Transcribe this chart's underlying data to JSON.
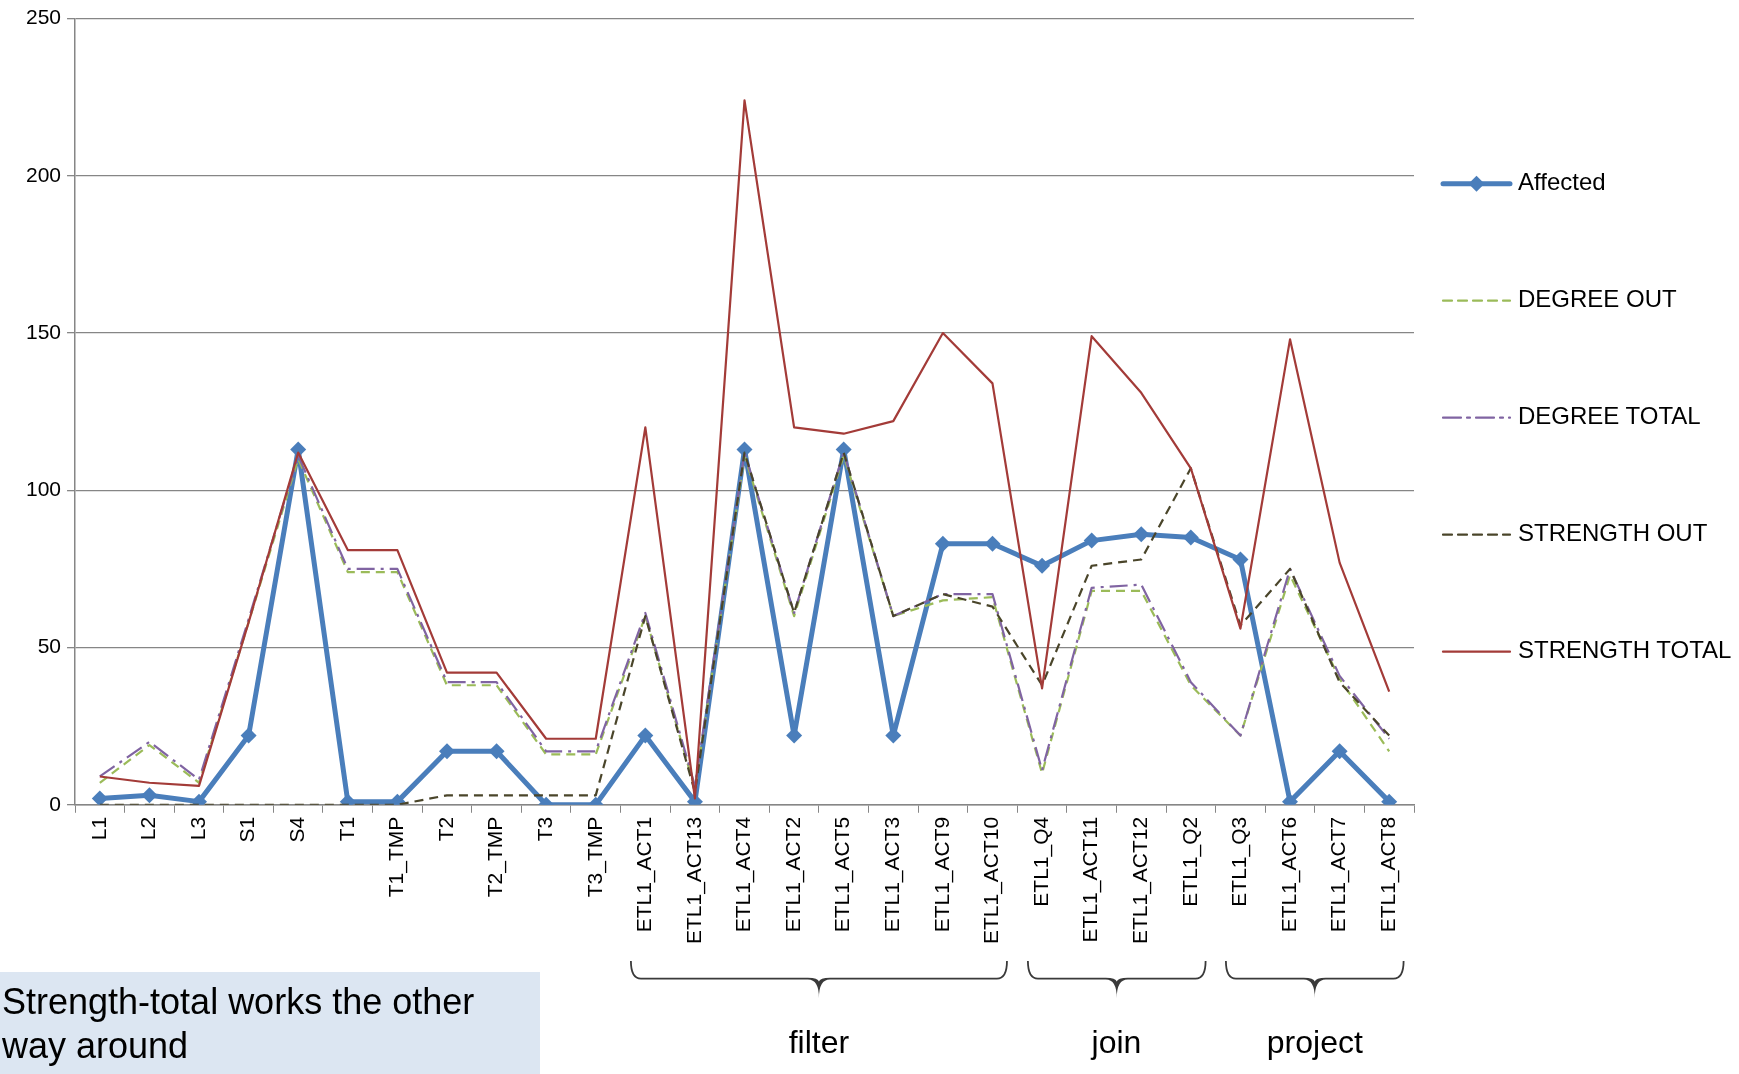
{
  "chart_data": {
    "type": "line",
    "categories": [
      "L1",
      "L2",
      "L3",
      "S1",
      "S4",
      "T1",
      "T1_TMP",
      "T2",
      "T2_TMP",
      "T3",
      "T3_TMP",
      "ETL1_ACT1",
      "ETL1_ACT13",
      "ETL1_ACT4",
      "ETL1_ACT2",
      "ETL1_ACT5",
      "ETL1_ACT3",
      "ETL1_ACT9",
      "ETL1_ACT10",
      "ETL1_Q4",
      "ETL1_ACT11",
      "ETL1_ACT12",
      "ETL1_Q2",
      "ETL1_Q3",
      "ETL1_ACT6",
      "ETL1_ACT7",
      "ETL1_ACT8"
    ],
    "series": [
      {
        "name": "Affected",
        "color": "#4a7ebb",
        "line_style": "solid",
        "marker": "diamond",
        "values": [
          2,
          3,
          1,
          22,
          113,
          1,
          1,
          17,
          17,
          0,
          0,
          22,
          1,
          113,
          22,
          113,
          22,
          83,
          83,
          76,
          84,
          86,
          85,
          78,
          1,
          17,
          1
        ]
      },
      {
        "name": "DEGREE OUT",
        "color": "#9bbb59",
        "line_style": "dashed",
        "marker": "none",
        "values": [
          7,
          19,
          7,
          58,
          110,
          74,
          74,
          38,
          38,
          16,
          16,
          60,
          5,
          111,
          60,
          111,
          60,
          65,
          66,
          10,
          68,
          68,
          38,
          22,
          73,
          40,
          17
        ]
      },
      {
        "name": "DEGREE TOTAL",
        "color": "#8064a2",
        "line_style": "dashdot",
        "marker": "none",
        "values": [
          9,
          20,
          8,
          59,
          111,
          75,
          75,
          39,
          39,
          17,
          17,
          61,
          6,
          112,
          61,
          112,
          60,
          67,
          67,
          11,
          69,
          70,
          39,
          22,
          75,
          41,
          21
        ]
      },
      {
        "name": "STRENGTH OUT",
        "color": "#4a452a",
        "line_style": "dashed",
        "marker": "none",
        "values": [
          0,
          0,
          0,
          0,
          0,
          0,
          0,
          3,
          3,
          3,
          3,
          60,
          4,
          112,
          61,
          112,
          60,
          67,
          63,
          38,
          76,
          78,
          107,
          57,
          75,
          39,
          22
        ]
      },
      {
        "name": "STRENGTH TOTAL",
        "color": "#a33b38",
        "line_style": "solid",
        "marker": "none",
        "values": [
          9,
          7,
          6,
          58,
          112,
          81,
          81,
          42,
          42,
          21,
          21,
          120,
          2,
          224,
          120,
          118,
          122,
          150,
          134,
          37,
          149,
          131,
          107,
          56,
          148,
          77,
          36
        ]
      }
    ],
    "ylim": [
      0,
      250
    ],
    "yticks": [
      0,
      50,
      100,
      150,
      200,
      250
    ],
    "grid": "y",
    "legend": "right",
    "annotations": [
      "Strength-total works the other way around",
      "filter",
      "join",
      "project"
    ]
  }
}
